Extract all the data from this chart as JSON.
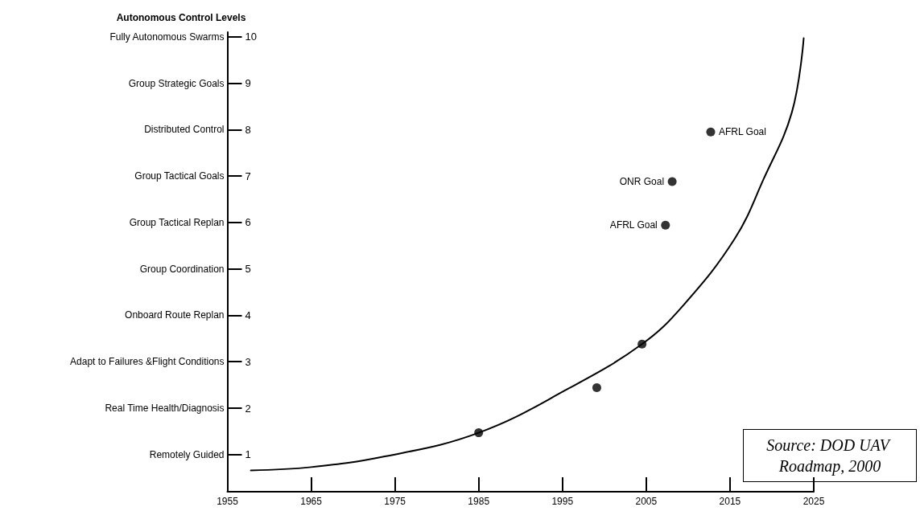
{
  "chart_data": {
    "type": "line",
    "ylabel": "Autonomous Control Levels",
    "series": [
      {
        "color": "#000000",
        "marker": "none",
        "line_style": "solid",
        "x": [
          1957.8,
          1965,
          1973.8,
          1985,
          1995.7,
          2004.5,
          2009.4,
          2015.6,
          2019,
          2022.4,
          2023.8
        ],
        "values": [
          0.66,
          0.73,
          0.96,
          1.47,
          2.42,
          3.38,
          4.21,
          5.66,
          6.93,
          8.38,
          9.97
        ]
      },
      {
        "type": "scatter",
        "color": "#000000",
        "marker": "circle",
        "x": [
          1985,
          1999.1,
          2004.5,
          2007.3,
          2008.1,
          2012.7
        ],
        "values": [
          1.47,
          2.44,
          3.38,
          5.94,
          6.88,
          7.95
        ]
      }
    ],
    "xlim": [
      1955,
      2025
    ],
    "xticks": [
      1955,
      1965,
      1975,
      1985,
      1995,
      2005,
      2015,
      2025
    ],
    "ylim": [
      0.2,
      10.1
    ],
    "yticks": [
      1,
      2,
      3,
      4,
      5,
      6,
      7,
      8,
      9,
      10
    ],
    "annotations": [
      "Remotely Guided",
      "Real Time Health/Diagnosis",
      "Adapt to Failures &Flight Conditions",
      "Onboard Route Replan",
      "Group Coordination",
      "Group Tactical Replan",
      "Group Tactical Goals",
      "Distributed Control",
      "Group Strategic Goals",
      "Fully Autonomous Swarms",
      {
        "text": "AFRL Goal",
        "x": 2007.3,
        "y": 5.94
      },
      {
        "text": "ONR Goal",
        "x": 2008.1,
        "y": 6.88
      },
      {
        "text": "AFRL Goal",
        "x": 2012.7,
        "y": 7.95
      },
      "Source: DOD UAV Roadmap, 2000"
    ],
    "grid": false
  }
}
